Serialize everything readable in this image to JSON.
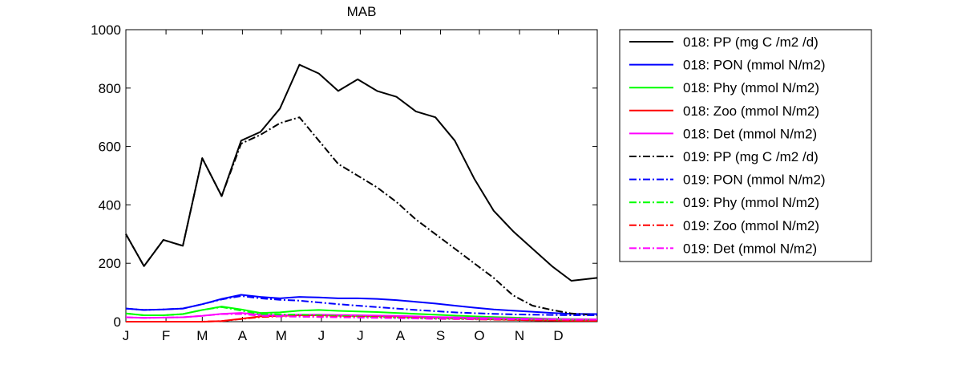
{
  "chart_data": {
    "type": "line",
    "title": "MAB",
    "xlabel": "",
    "ylabel": "",
    "xlim": [
      1,
      365
    ],
    "ylim": [
      0,
      1000
    ],
    "grid": false,
    "legend_position": "outside-right",
    "x_tick_labels": [
      "J",
      "F",
      "M",
      "A",
      "M",
      "J",
      "J",
      "A",
      "S",
      "O",
      "N",
      "D"
    ],
    "x_tick_days": [
      1,
      32,
      60,
      91,
      121,
      152,
      182,
      213,
      244,
      274,
      305,
      335
    ],
    "y_ticks": [
      0,
      200,
      400,
      600,
      800,
      1000
    ],
    "y_tick_labels": [
      "0",
      "200",
      "400",
      "600",
      "800",
      "1000"
    ],
    "x_sample_days": [
      1,
      15,
      30,
      45,
      60,
      75,
      90,
      105,
      120,
      135,
      150,
      165,
      180,
      195,
      210,
      225,
      240,
      255,
      270,
      285,
      300,
      315,
      330,
      345,
      365
    ],
    "series": [
      {
        "name": "018: PP (mg C /m2 /d)",
        "color": "#000000",
        "style": "solid",
        "values": [
          300,
          190,
          280,
          260,
          560,
          430,
          620,
          650,
          730,
          880,
          850,
          790,
          830,
          790,
          770,
          720,
          700,
          620,
          490,
          380,
          310,
          250,
          190,
          140,
          150
        ]
      },
      {
        "name": "018: PON (mmol N/m2)",
        "color": "#0000ff",
        "style": "solid",
        "values": [
          45,
          40,
          42,
          45,
          60,
          78,
          92,
          85,
          80,
          85,
          83,
          80,
          80,
          78,
          74,
          68,
          62,
          55,
          48,
          42,
          38,
          34,
          30,
          27,
          26
        ]
      },
      {
        "name": "018: Phy (mmol N/m2)",
        "color": "#00ff00",
        "style": "solid",
        "values": [
          28,
          22,
          22,
          26,
          40,
          52,
          42,
          30,
          32,
          38,
          40,
          37,
          35,
          33,
          30,
          27,
          24,
          21,
          18,
          16,
          14,
          12,
          10,
          9,
          8
        ]
      },
      {
        "name": "018: Zoo (mmol N/m2)",
        "color": "#ff0000",
        "style": "solid",
        "values": [
          0,
          0,
          0,
          0,
          0,
          2,
          10,
          18,
          20,
          22,
          22,
          21,
          20,
          19,
          18,
          16,
          14,
          12,
          10,
          8,
          6,
          5,
          4,
          3,
          3
        ]
      },
      {
        "name": "018: Det (mmol N/m2)",
        "color": "#ff00ff",
        "style": "solid",
        "values": [
          15,
          13,
          14,
          15,
          20,
          27,
          30,
          24,
          22,
          24,
          24,
          23,
          22,
          21,
          20,
          18,
          16,
          15,
          13,
          12,
          11,
          10,
          9,
          8,
          8
        ]
      },
      {
        "name": "019: PP (mg C /m2 /d)",
        "color": "#000000",
        "style": "dashdot",
        "values": [
          300,
          190,
          280,
          260,
          560,
          430,
          610,
          640,
          680,
          700,
          620,
          540,
          500,
          460,
          410,
          350,
          300,
          250,
          200,
          150,
          90,
          55,
          40,
          28,
          22
        ]
      },
      {
        "name": "019: PON (mmol N/m2)",
        "color": "#0000ff",
        "style": "dashdot",
        "values": [
          45,
          40,
          42,
          45,
          60,
          76,
          88,
          80,
          75,
          72,
          66,
          60,
          55,
          50,
          45,
          40,
          36,
          32,
          29,
          27,
          25,
          24,
          23,
          22,
          22
        ]
      },
      {
        "name": "019: Phy (mmol N/m2)",
        "color": "#00ff00",
        "style": "dashdot",
        "values": [
          28,
          22,
          22,
          26,
          40,
          50,
          38,
          26,
          25,
          24,
          22,
          20,
          18,
          16,
          14,
          12,
          11,
          10,
          9,
          8,
          7,
          7,
          6,
          6,
          6
        ]
      },
      {
        "name": "019: Zoo (mmol N/m2)",
        "color": "#ff0000",
        "style": "dashdot",
        "values": [
          0,
          0,
          0,
          0,
          0,
          2,
          9,
          16,
          18,
          19,
          18,
          17,
          16,
          15,
          14,
          12,
          10,
          9,
          8,
          7,
          6,
          5,
          4,
          3,
          3
        ]
      },
      {
        "name": "019: Det (mmol N/m2)",
        "color": "#ff00ff",
        "style": "dashdot",
        "values": [
          15,
          13,
          14,
          15,
          20,
          26,
          26,
          20,
          18,
          17,
          16,
          15,
          14,
          13,
          12,
          11,
          10,
          10,
          9,
          9,
          8,
          8,
          8,
          7,
          7
        ]
      }
    ]
  }
}
